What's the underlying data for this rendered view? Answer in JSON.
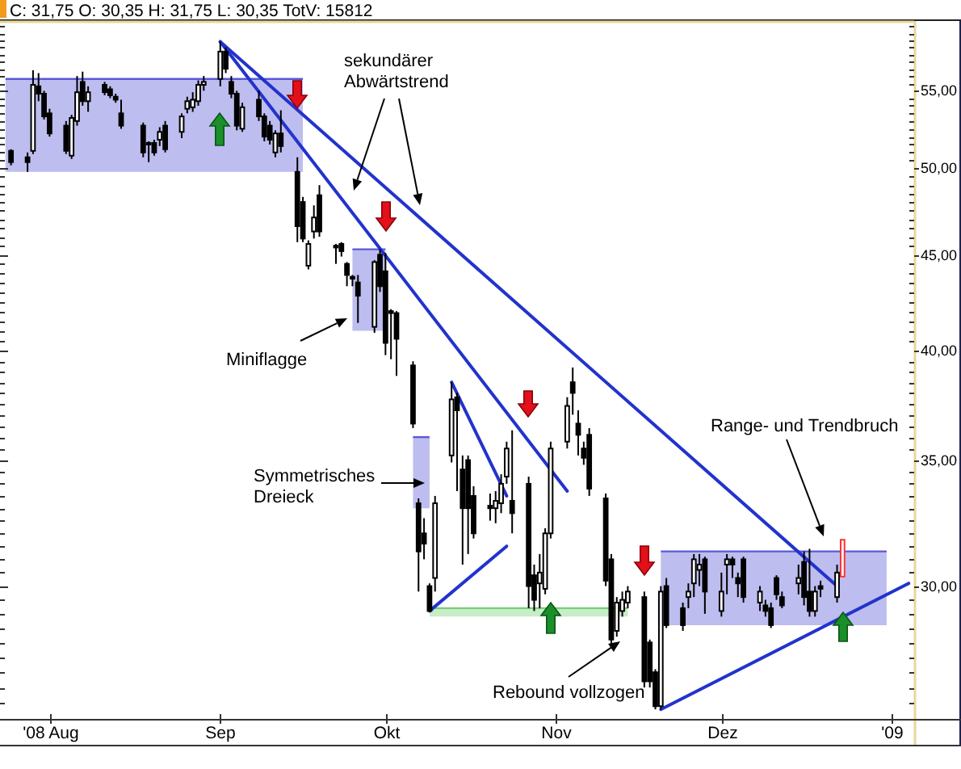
{
  "chart_data": {
    "type": "candlestick",
    "title": "C: 31,75 O: 30,35 H: 31,75 L: 30,35 TotV: 15812",
    "x": [
      "2008-07-25",
      "2008-07-28",
      "2008-07-29",
      "2008-07-30",
      "2008-07-31",
      "2008-08-01",
      "2008-08-04",
      "2008-08-05",
      "2008-08-06",
      "2008-08-07",
      "2008-08-08",
      "2008-08-11",
      "2008-08-12",
      "2008-08-13",
      "2008-08-14",
      "2008-08-18",
      "2008-08-19",
      "2008-08-20",
      "2008-08-21",
      "2008-08-22",
      "2008-08-25",
      "2008-08-26",
      "2008-08-27",
      "2008-08-28",
      "2008-08-29",
      "2008-09-01",
      "2008-09-02",
      "2008-09-03",
      "2008-09-04",
      "2008-09-05",
      "2008-09-08",
      "2008-09-09",
      "2008-09-10",
      "2008-09-11",
      "2008-09-12",
      "2008-09-15",
      "2008-09-16",
      "2008-09-17",
      "2008-09-18",
      "2008-09-19",
      "2008-09-22",
      "2008-09-23",
      "2008-09-24",
      "2008-09-25",
      "2008-09-26",
      "2008-09-29",
      "2008-09-30",
      "2008-10-01",
      "2008-10-02",
      "2008-10-03",
      "2008-10-06",
      "2008-10-07",
      "2008-10-08",
      "2008-10-09",
      "2008-10-10",
      "2008-10-13",
      "2008-10-14",
      "2008-10-15",
      "2008-10-16",
      "2008-10-17",
      "2008-10-20",
      "2008-10-21",
      "2008-10-22",
      "2008-10-23",
      "2008-10-24",
      "2008-10-27",
      "2008-10-28",
      "2008-10-29",
      "2008-10-30",
      "2008-10-31",
      "2008-11-03",
      "2008-11-04",
      "2008-11-05",
      "2008-11-06",
      "2008-11-07",
      "2008-11-10",
      "2008-11-11",
      "2008-11-12",
      "2008-11-13",
      "2008-11-14",
      "2008-11-17",
      "2008-11-18",
      "2008-11-19",
      "2008-11-20",
      "2008-11-21",
      "2008-11-24",
      "2008-11-25",
      "2008-11-26",
      "2008-11-27",
      "2008-11-28",
      "2008-12-01",
      "2008-12-02",
      "2008-12-03",
      "2008-12-04",
      "2008-12-05",
      "2008-12-08",
      "2008-12-09",
      "2008-12-10",
      "2008-12-11",
      "2008-12-12",
      "2008-12-15",
      "2008-12-16",
      "2008-12-17",
      "2008-12-18",
      "2008-12-19",
      "2008-12-22",
      "2008-12-23"
    ],
    "ohlc": [
      [
        51.1,
        51.2,
        50.2,
        50.4
      ],
      [
        50.7,
        51.0,
        49.8,
        50.4
      ],
      [
        51.1,
        56.4,
        50.9,
        55.4
      ],
      [
        55.3,
        56.2,
        54.3,
        54.8
      ],
      [
        54.8,
        55.0,
        53.1,
        53.3
      ],
      [
        53.5,
        53.8,
        52.0,
        52.2
      ],
      [
        52.7,
        53.0,
        50.9,
        51.1
      ],
      [
        50.8,
        53.4,
        50.6,
        53.2
      ],
      [
        53.0,
        56.0,
        52.7,
        54.9
      ],
      [
        55.6,
        56.3,
        54.0,
        54.3
      ],
      [
        54.3,
        55.3,
        53.6,
        54.9
      ],
      [
        55.4,
        55.6,
        54.7,
        54.9
      ],
      [
        55.1,
        55.3,
        54.5,
        54.7
      ],
      [
        54.6,
        54.8,
        54.2,
        54.4
      ],
      [
        53.5,
        54.4,
        52.5,
        52.7
      ],
      [
        52.7,
        52.9,
        50.7,
        51.0
      ],
      [
        51.6,
        51.7,
        50.4,
        51.5
      ],
      [
        51.6,
        51.8,
        50.8,
        51.0
      ],
      [
        51.8,
        52.6,
        51.4,
        52.3
      ],
      [
        52.7,
        53.0,
        51.0,
        51.2
      ],
      [
        52.3,
        53.5,
        51.9,
        53.3
      ],
      [
        53.8,
        54.6,
        53.5,
        54.3
      ],
      [
        53.9,
        54.9,
        53.6,
        54.4
      ],
      [
        54.3,
        55.7,
        54.0,
        55.4
      ],
      [
        55.4,
        56.0,
        55.0,
        55.6
      ],
      [
        55.8,
        58.4,
        55.3,
        57.7
      ],
      [
        57.7,
        58.0,
        56.2,
        56.5
      ],
      [
        55.6,
        56.0,
        54.5,
        54.8
      ],
      [
        54.8,
        55.0,
        52.4,
        52.7
      ],
      [
        52.5,
        54.2,
        52.3,
        53.9
      ],
      [
        54.4,
        55.0,
        53.0,
        53.3
      ],
      [
        53.3,
        53.5,
        51.7,
        52.0
      ],
      [
        52.7,
        53.0,
        51.5,
        51.8
      ],
      [
        51.0,
        52.4,
        50.7,
        52.2
      ],
      [
        52.2,
        53.7,
        51.0,
        51.4
      ],
      [
        49.8,
        50.7,
        45.7,
        46.6
      ],
      [
        48.0,
        48.3,
        45.7,
        45.9
      ],
      [
        44.4,
        45.8,
        44.2,
        45.6
      ],
      [
        46.3,
        47.8,
        45.9,
        47.1
      ],
      [
        48.4,
        49.0,
        46.0,
        46.3
      ],
      [
        45.5,
        45.6,
        44.5,
        45.4
      ],
      [
        45.6,
        45.7,
        44.9,
        45.2
      ],
      [
        44.5,
        44.6,
        43.3,
        43.9
      ],
      [
        43.8,
        43.9,
        43.3,
        43.7
      ],
      [
        43.5,
        43.9,
        41.4,
        42.8
      ],
      [
        41.2,
        44.7,
        40.9,
        44.6
      ],
      [
        45.0,
        45.3,
        43.0,
        43.3
      ],
      [
        44.1,
        45.1,
        39.8,
        40.4
      ],
      [
        42.0,
        42.1,
        39.6,
        41.9
      ],
      [
        41.9,
        42.0,
        38.8,
        40.6
      ],
      [
        39.3,
        39.5,
        36.4,
        36.6
      ],
      [
        33.2,
        33.4,
        29.8,
        31.3
      ],
      [
        32.0,
        32.6,
        31.0,
        31.6
      ],
      [
        30.0,
        30.1,
        29.1,
        29.1
      ],
      [
        30.3,
        33.5,
        29.8,
        33.2
      ],
      [
        35.2,
        38.5,
        34.9,
        37.7
      ],
      [
        37.8,
        38.0,
        33.7,
        37.2
      ],
      [
        34.6,
        35.2,
        30.8,
        33.0
      ],
      [
        35.0,
        35.2,
        31.2,
        33.0
      ],
      [
        33.5,
        33.9,
        31.8,
        32.0
      ],
      [
        33.1,
        33.6,
        32.5,
        33.0
      ],
      [
        33.0,
        33.7,
        32.4,
        33.3
      ],
      [
        33.2,
        34.4,
        32.8,
        34.0
      ],
      [
        34.3,
        35.8,
        34.0,
        35.5
      ],
      [
        33.3,
        36.3,
        32.0,
        32.8
      ],
      [
        34.0,
        34.3,
        29.2,
        30.0
      ],
      [
        30.4,
        30.8,
        29.1,
        29.5
      ],
      [
        30.1,
        31.2,
        29.2,
        30.5
      ],
      [
        29.9,
        32.2,
        29.7,
        32.0
      ],
      [
        32.0,
        35.8,
        31.8,
        35.5
      ],
      [
        35.8,
        37.8,
        35.5,
        37.4
      ],
      [
        38.5,
        39.2,
        37.0,
        38.0
      ],
      [
        36.6,
        37.2,
        35.2,
        36.1
      ],
      [
        35.5,
        35.8,
        34.8,
        35.1
      ],
      [
        36.1,
        36.4,
        33.5,
        33.8
      ],
      [
        33.4,
        33.6,
        30.0,
        30.2
      ],
      [
        31.0,
        31.2,
        27.8,
        28.1
      ],
      [
        28.4,
        29.6,
        28.2,
        29.4
      ],
      [
        29.1,
        29.8,
        28.9,
        29.5
      ],
      [
        29.4,
        30.0,
        29.2,
        29.8
      ],
      [
        29.6,
        29.8,
        26.5,
        26.7
      ],
      [
        28.0,
        28.1,
        26.5,
        26.7
      ],
      [
        27.0,
        27.1,
        25.8,
        25.9
      ],
      [
        25.9,
        30.0,
        25.8,
        29.8
      ],
      [
        30.0,
        30.3,
        28.5,
        28.6
      ],
      [
        29.2,
        29.4,
        28.4,
        28.6
      ],
      [
        29.6,
        30.1,
        29.2,
        29.8
      ],
      [
        30.1,
        31.2,
        29.6,
        31.0
      ],
      [
        30.6,
        31.2,
        30.0,
        30.8
      ],
      [
        31.0,
        31.1,
        29.0,
        29.8
      ],
      [
        29.1,
        30.5,
        28.9,
        29.8
      ],
      [
        30.8,
        31.2,
        29.7,
        31.0
      ],
      [
        31.0,
        31.1,
        30.3,
        30.8
      ],
      [
        30.3,
        30.5,
        29.6,
        30.1
      ],
      [
        31.0,
        31.1,
        29.4,
        29.6
      ],
      [
        29.4,
        30.0,
        29.1,
        29.8
      ],
      [
        29.3,
        29.5,
        28.9,
        29.1
      ],
      [
        29.2,
        29.4,
        28.5,
        28.6
      ],
      [
        30.3,
        30.4,
        29.5,
        29.7
      ],
      [
        29.6,
        29.8,
        29.2,
        29.3
      ],
      [
        30.1,
        30.8,
        29.7,
        30.3
      ],
      [
        30.9,
        31.3,
        29.3,
        29.6
      ],
      [
        29.8,
        31.4,
        28.9,
        29.1
      ],
      [
        29.1,
        30.0,
        28.9,
        29.8
      ],
      [
        30.0,
        30.2,
        29.6,
        29.9
      ],
      [
        29.6,
        30.8,
        29.4,
        30.5
      ],
      [
        30.35,
        31.75,
        30.35,
        31.75
      ]
    ],
    "colors": [
      "#000000",
      "#000000",
      "#000000",
      "#000000",
      "#000000",
      "#000000",
      "#000000",
      "#000000",
      "#000000",
      "#000000",
      "#000000",
      "#000000",
      "#000000",
      "#000000",
      "#000000",
      "#000000",
      "#000000",
      "#000000",
      "#000000",
      "#000000",
      "#000000",
      "#000000",
      "#000000",
      "#000000",
      "#000000",
      "#000000",
      "#000000",
      "#000000",
      "#000000",
      "#000000",
      "#000000",
      "#000000",
      "#000000",
      "#000000",
      "#000000",
      "#000000",
      "#000000",
      "#000000",
      "#000000",
      "#000000",
      "#000000",
      "#000000",
      "#000000",
      "#000000",
      "#000000",
      "#000000",
      "#000000",
      "#000000",
      "#000000",
      "#000000",
      "#000000",
      "#000000",
      "#000000",
      "#000000",
      "#000000",
      "#000000",
      "#000000",
      "#000000",
      "#000000",
      "#000000",
      "#000000",
      "#000000",
      "#000000",
      "#000000",
      "#000000",
      "#000000",
      "#000000",
      "#000000",
      "#000000",
      "#000000",
      "#000000",
      "#000000",
      "#000000",
      "#000000",
      "#000000",
      "#000000",
      "#000000",
      "#000000",
      "#000000",
      "#000000",
      "#000000",
      "#000000",
      "#000000",
      "#000000",
      "#000000",
      "#000000",
      "#000000",
      "#000000",
      "#000000",
      "#000000",
      "#000000",
      "#000000",
      "#000000",
      "#000000",
      "#000000",
      "#000000",
      "#000000",
      "#000000",
      "#000000",
      "#000000",
      "#000000",
      "#000000",
      "#000000",
      "#000000",
      "#000000",
      "#000000",
      "#ff3333"
    ],
    "series": [
      {
        "type": "line",
        "x": [
          "2008-07-24",
          "2008-09-16"
        ],
        "values": [
          55.8,
          55.8
        ],
        "lower": [
          49.8,
          49.8
        ],
        "upper": [
          55.8,
          55.8
        ],
        "color": "#5a5ad8"
      },
      {
        "type": "line",
        "x": [
          "2008-09-25",
          "2008-10-01"
        ],
        "values": [
          45.3,
          45.3
        ],
        "lower": [
          41.0,
          41.0
        ],
        "upper": [
          45.3,
          45.3
        ],
        "color": "#5a5ad8"
      },
      {
        "type": "line",
        "x": [
          "2008-10-06",
          "2008-10-09"
        ],
        "values": [
          36.0,
          36.0
        ],
        "lower": [
          33.0,
          33.0
        ],
        "upper": [
          36.0,
          36.0
        ],
        "color": "#5a5ad8"
      },
      {
        "type": "line",
        "x": [
          "2008-11-20",
          "2008-12-31"
        ],
        "values": [
          31.3,
          31.3
        ],
        "lower": [
          28.6,
          28.6
        ],
        "upper": [
          31.3,
          31.3
        ],
        "color": "#5a5ad8"
      },
      {
        "type": "line",
        "x": [
          "2008-10-09",
          "2008-11-14"
        ],
        "values": [
          29.2,
          29.2
        ],
        "lower": [
          28.9,
          28.9
        ],
        "upper": [
          29.2,
          29.2
        ],
        "color": "#76cf76"
      },
      {
        "type": "line",
        "x": [
          "2008-09-01",
          "2008-12-22"
        ],
        "values": [
          58.4,
          30.0
        ],
        "color": "#2233cc"
      },
      {
        "type": "line",
        "x": [
          "2008-09-01",
          "2008-11-03"
        ],
        "values": [
          58.4,
          33.7
        ],
        "color": "#2233cc"
      },
      {
        "type": "line",
        "x": [
          "2008-10-13",
          "2008-10-23"
        ],
        "values": [
          38.5,
          33.5
        ],
        "color": "#2233cc"
      },
      {
        "type": "line",
        "x": [
          "2008-10-09",
          "2008-10-23"
        ],
        "values": [
          29.1,
          31.5
        ],
        "color": "#2233cc"
      },
      {
        "type": "line",
        "x": [
          "2008-11-20",
          "2009-01-04"
        ],
        "values": [
          25.8,
          30.1
        ],
        "color": "#2233cc"
      }
    ],
    "xlim": [
      "2008-07-23",
      "2009-01-05"
    ],
    "xticks": [
      {
        "value": "2008-08-01",
        "label": "'08 Aug"
      },
      {
        "value": "2008-09-01",
        "label": "Sep"
      },
      {
        "value": "2008-10-01",
        "label": "Okt"
      },
      {
        "value": "2008-11-01",
        "label": "Nov"
      },
      {
        "value": "2008-12-01",
        "label": "Dez"
      },
      {
        "value": "2009-01-01",
        "label": "'09"
      }
    ],
    "ylim": [
      25.5,
      59.9
    ],
    "yticks": [
      {
        "value": 26,
        "label": null
      },
      {
        "value": 26.5,
        "label": null
      },
      {
        "value": 27,
        "label": null
      },
      {
        "value": 27.5,
        "label": null
      },
      {
        "value": 28,
        "label": null
      },
      {
        "value": 28.5,
        "label": null
      },
      {
        "value": 29,
        "label": null
      },
      {
        "value": 29.5,
        "label": null
      },
      {
        "value": 30,
        "label": "30,00"
      },
      {
        "value": 30.5,
        "label": null
      },
      {
        "value": 31,
        "label": null
      },
      {
        "value": 31.5,
        "label": null
      },
      {
        "value": 32,
        "label": null
      },
      {
        "value": 32.5,
        "label": null
      },
      {
        "value": 33,
        "label": null
      },
      {
        "value": 33.5,
        "label": null
      },
      {
        "value": 34,
        "label": null
      },
      {
        "value": 34.5,
        "label": null
      },
      {
        "value": 35,
        "label": "35,00"
      },
      {
        "value": 35.5,
        "label": null
      },
      {
        "value": 36,
        "label": null
      },
      {
        "value": 36.5,
        "label": null
      },
      {
        "value": 37,
        "label": null
      },
      {
        "value": 37.5,
        "label": null
      },
      {
        "value": 38,
        "label": null
      },
      {
        "value": 38.5,
        "label": null
      },
      {
        "value": 39,
        "label": null
      },
      {
        "value": 39.5,
        "label": null
      },
      {
        "value": 40,
        "label": "40,00"
      },
      {
        "value": 40.5,
        "label": null
      },
      {
        "value": 41,
        "label": null
      },
      {
        "value": 41.5,
        "label": null
      },
      {
        "value": 42,
        "label": null
      },
      {
        "value": 42.5,
        "label": null
      },
      {
        "value": 43,
        "label": null
      },
      {
        "value": 43.5,
        "label": null
      },
      {
        "value": 44,
        "label": null
      },
      {
        "value": 44.5,
        "label": null
      },
      {
        "value": 45,
        "label": "45,00"
      },
      {
        "value": 45.5,
        "label": null
      },
      {
        "value": 46,
        "label": null
      },
      {
        "value": 46.5,
        "label": null
      },
      {
        "value": 47,
        "label": null
      },
      {
        "value": 47.5,
        "label": null
      },
      {
        "value": 48,
        "label": null
      },
      {
        "value": 48.5,
        "label": null
      },
      {
        "value": 49,
        "label": null
      },
      {
        "value": 49.5,
        "label": null
      },
      {
        "value": 50,
        "label": "50,00"
      },
      {
        "value": 50.5,
        "label": null
      },
      {
        "value": 51,
        "label": null
      },
      {
        "value": 51.5,
        "label": null
      },
      {
        "value": 52,
        "label": null
      },
      {
        "value": 52.5,
        "label": null
      },
      {
        "value": 53,
        "label": null
      },
      {
        "value": 53.5,
        "label": null
      },
      {
        "value": 54,
        "label": null
      },
      {
        "value": 54.5,
        "label": null
      },
      {
        "value": 55,
        "label": "55,00"
      },
      {
        "value": 55.5,
        "label": null
      },
      {
        "value": 56,
        "label": null
      },
      {
        "value": 56.5,
        "label": null
      },
      {
        "value": 57,
        "label": null
      },
      {
        "value": 57.5,
        "label": null
      },
      {
        "value": 58,
        "label": null
      },
      {
        "value": 58.5,
        "label": null
      },
      {
        "value": 59,
        "label": null
      },
      {
        "value": 59.5,
        "label": null
      }
    ],
    "log": true,
    "annotations": [
      "sekundärer\nAbwärtstrend",
      "Miniflagge",
      "Range- und Trendbruch",
      "Symmetrisches\nDreieck",
      "Rebound vollzogen"
    ]
  }
}
